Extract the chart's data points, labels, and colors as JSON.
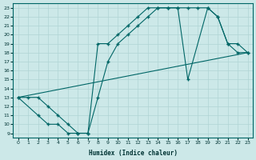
{
  "xlabel": "Humidex (Indice chaleur)",
  "bg_color": "#cce8e8",
  "grid_color": "#b0d4d4",
  "line_color": "#006666",
  "line1": {
    "x": [
      0,
      1,
      2,
      3,
      4,
      5,
      6,
      7,
      8,
      9,
      10,
      11,
      12,
      13,
      14,
      15,
      16,
      17,
      18,
      19,
      20,
      21,
      22,
      23
    ],
    "y": [
      13,
      13,
      13,
      12,
      11,
      10,
      9,
      9,
      19,
      19,
      20,
      21,
      22,
      23,
      23,
      23,
      23,
      23,
      23,
      23,
      22,
      19,
      18,
      18
    ]
  },
  "line2": {
    "x": [
      0,
      2,
      3,
      4,
      5,
      6,
      7,
      8,
      9,
      10,
      11,
      12,
      13,
      14,
      15,
      16,
      17,
      19,
      20,
      21,
      22,
      23
    ],
    "y": [
      13,
      11,
      10,
      10,
      9,
      9,
      9,
      13,
      17,
      19,
      20,
      21,
      22,
      23,
      23,
      23,
      15,
      23,
      22,
      19,
      19,
      18
    ]
  },
  "line3": {
    "x": [
      0,
      23
    ],
    "y": [
      13,
      18
    ]
  },
  "xlim": [
    -0.5,
    23.5
  ],
  "ylim": [
    8.5,
    23.5
  ],
  "xticks": [
    0,
    1,
    2,
    3,
    4,
    5,
    6,
    7,
    8,
    9,
    10,
    11,
    12,
    13,
    14,
    15,
    16,
    17,
    18,
    19,
    20,
    21,
    22,
    23
  ],
  "yticks": [
    9,
    10,
    11,
    12,
    13,
    14,
    15,
    16,
    17,
    18,
    19,
    20,
    21,
    22,
    23
  ]
}
